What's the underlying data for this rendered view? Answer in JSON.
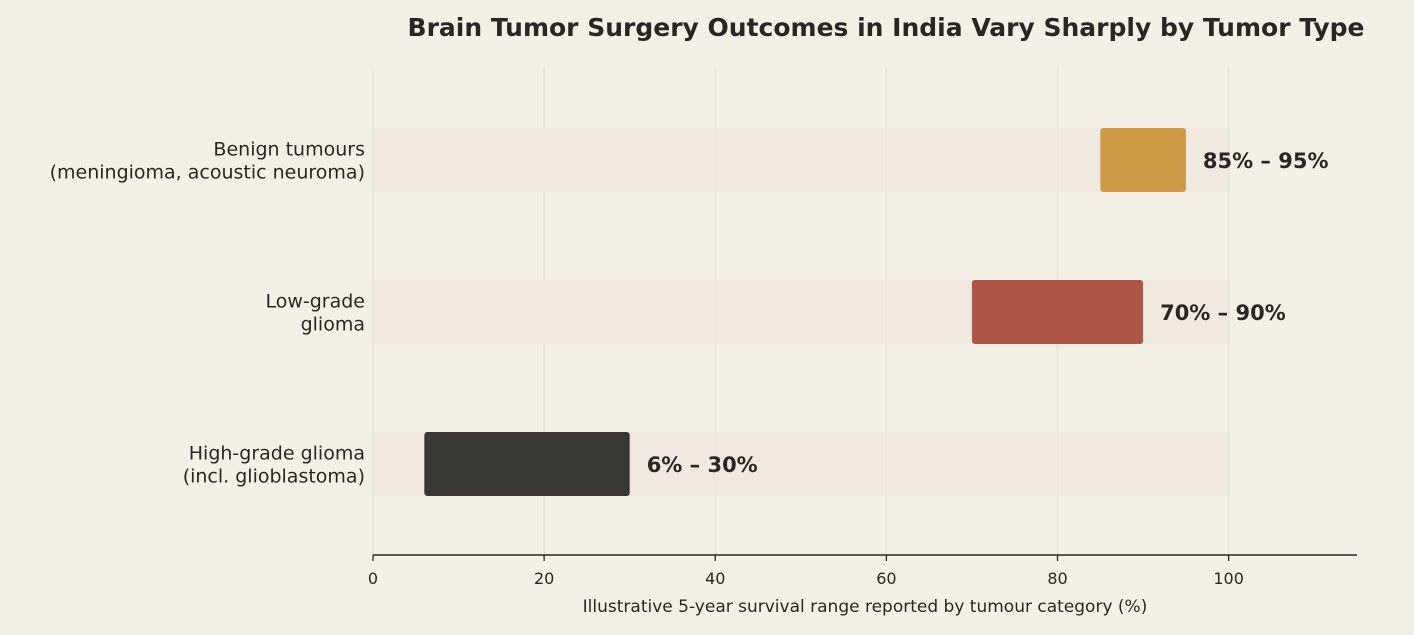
{
  "chart_data": {
    "type": "bar",
    "subtype": "floating-range",
    "orientation": "horizontal",
    "title": "Brain Tumor Surgery Outcomes in India Vary Sharply by Tumor Type",
    "xlabel": "Illustrative 5-year survival range reported by tumour category (%)",
    "ylabel": "",
    "xlim": [
      0,
      115
    ],
    "x_ticks": [
      0,
      20,
      40,
      60,
      80,
      100
    ],
    "track_max": 100,
    "grid": "vertical",
    "legend": "none",
    "categories": [
      {
        "lines": [
          "Benign tumours",
          "(meningioma, acoustic neuroma)"
        ],
        "low": 85,
        "high": 95,
        "label": "85% – 95%",
        "color": "#cc9a47"
      },
      {
        "lines": [
          "Low-grade",
          "glioma"
        ],
        "low": 70,
        "high": 90,
        "label": "70% – 90%",
        "color": "#ad5646"
      },
      {
        "lines": [
          "High-grade glioma",
          "(incl. glioblastoma)"
        ],
        "low": 6,
        "high": 30,
        "label": "6% – 30%",
        "color": "#3a3834"
      }
    ],
    "colors": {
      "background": "#f5f0e6",
      "track": "#ede8de",
      "grid": "#e3ddd2",
      "axis": "#2b2622",
      "text": "#2b2622"
    }
  }
}
